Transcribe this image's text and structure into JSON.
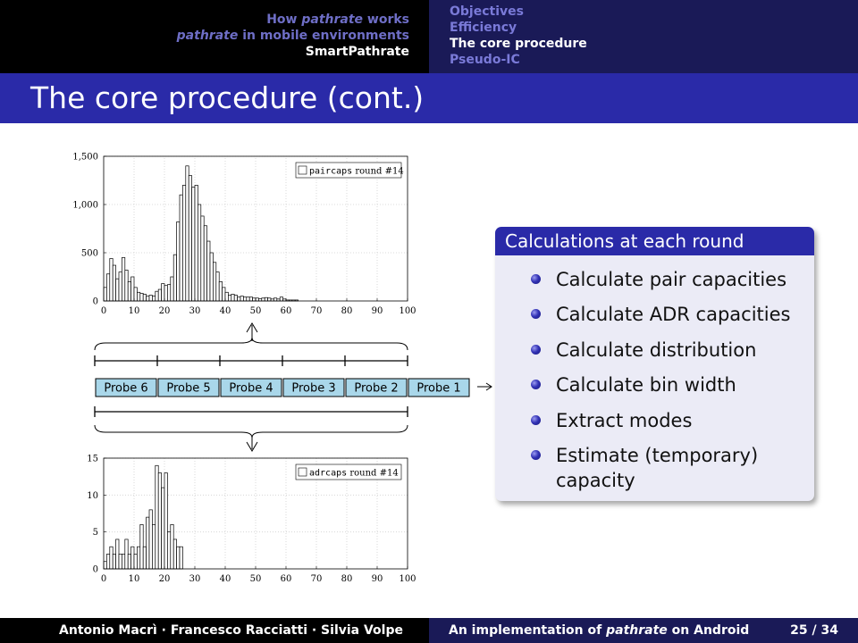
{
  "header": {
    "sections": [
      {
        "label": "How ",
        "italic": "pathrate",
        "rest": " works",
        "current": false
      },
      {
        "label": "",
        "italic": "pathrate",
        "rest": " in mobile environments",
        "current": false
      },
      {
        "label": "SmartPathrate",
        "italic": "",
        "rest": "",
        "current": true
      }
    ],
    "subsections": [
      {
        "label": "Objectives",
        "current": false
      },
      {
        "label": "Efficiency",
        "current": false
      },
      {
        "label": "The core procedure",
        "current": true
      },
      {
        "label": "Pseudo-IC",
        "current": false
      }
    ]
  },
  "frame_title": "The core procedure (cont.)",
  "figure": {
    "probes": [
      "Probe 6",
      "Probe 5",
      "Probe 4",
      "Probe 3",
      "Probe 2",
      "Probe 1"
    ]
  },
  "block": {
    "title": "Calculations at each round",
    "items": [
      "Calculate pair capacities",
      "Calculate ADR capacities",
      "Calculate distribution",
      "Calculate bin width",
      "Extract modes",
      "Estimate (temporary) capacity"
    ]
  },
  "footer": {
    "authors": "Antonio Macrì · Francesco Racciatti · Silvia Volpe",
    "talk_prefix": "An implementation of ",
    "talk_italic": "pathrate",
    "talk_suffix": " on Android",
    "page": "25 / 34"
  },
  "chart_data": [
    {
      "type": "bar",
      "title": "",
      "legend": "paircaps round #14",
      "legend_placement": "top-right",
      "xlim": [
        0,
        100
      ],
      "ylim": [
        0,
        1500
      ],
      "xticks": [
        0,
        10,
        20,
        30,
        40,
        50,
        60,
        70,
        80,
        90,
        100
      ],
      "yticks": [
        0,
        500,
        1000,
        1500
      ],
      "bin_width": 1,
      "x": [
        1,
        2,
        3,
        4,
        5,
        6,
        7,
        8,
        9,
        10,
        11,
        12,
        13,
        14,
        15,
        16,
        17,
        18,
        19,
        20,
        21,
        22,
        23,
        24,
        25,
        26,
        27,
        28,
        29,
        30,
        31,
        32,
        33,
        34,
        35,
        36,
        37,
        38,
        39,
        40,
        41,
        42,
        43,
        44,
        45,
        46,
        47,
        48,
        49,
        50,
        51,
        52,
        53,
        54,
        55,
        56,
        57,
        58,
        59,
        60,
        61,
        62,
        63,
        64
      ],
      "values": [
        140,
        280,
        440,
        370,
        230,
        300,
        450,
        320,
        200,
        250,
        140,
        90,
        80,
        70,
        50,
        60,
        50,
        100,
        120,
        180,
        160,
        170,
        250,
        480,
        820,
        1100,
        1200,
        1400,
        1300,
        1180,
        1200,
        1000,
        880,
        780,
        620,
        500,
        400,
        300,
        200,
        140,
        90,
        60,
        70,
        60,
        40,
        50,
        40,
        40,
        40,
        30,
        30,
        25,
        30,
        35,
        30,
        20,
        30,
        20,
        40,
        20,
        10,
        10,
        10,
        10
      ]
    },
    {
      "type": "bar",
      "title": "",
      "legend": "adrcaps round #14",
      "legend_placement": "top-right",
      "xlim": [
        0,
        100
      ],
      "ylim": [
        0,
        15
      ],
      "xticks": [
        0,
        10,
        20,
        30,
        40,
        50,
        60,
        70,
        80,
        90,
        100
      ],
      "yticks": [
        0,
        5,
        10,
        15
      ],
      "bin_width": 1,
      "x": [
        1,
        2,
        3,
        4,
        5,
        6,
        7,
        8,
        9,
        10,
        11,
        12,
        13,
        14,
        15,
        16,
        17,
        18,
        19,
        20,
        21,
        22,
        23,
        24,
        25,
        26
      ],
      "values": [
        1,
        2,
        3,
        2,
        4,
        2,
        2,
        4,
        2,
        3,
        2,
        3,
        6,
        3,
        7,
        8,
        6,
        14,
        13,
        11,
        13,
        5,
        6,
        4,
        3,
        3
      ]
    }
  ]
}
